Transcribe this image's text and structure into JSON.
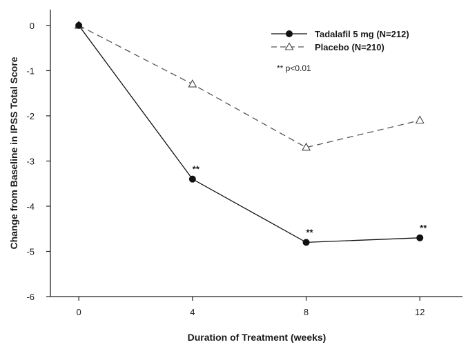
{
  "chart_data": {
    "type": "line",
    "x": [
      0,
      4,
      8,
      12
    ],
    "xticks": [
      "0",
      "4",
      "8",
      "12"
    ],
    "yticks": [
      "0",
      "-1",
      "-2",
      "-3",
      "-4",
      "-5",
      "-6"
    ],
    "xlabel": "Duration of Treatment (weeks)",
    "ylabel": "Change from Baseline in IPSS Total Score",
    "xlim": [
      -1,
      13.5
    ],
    "ylim": [
      -6,
      0.35
    ],
    "grid": false,
    "legend_position": "top-right",
    "annotation": "** p<0.01",
    "series": [
      {
        "name": "Tadalafil 5 mg (N=212)",
        "values": [
          0,
          -3.4,
          -4.8,
          -4.7
        ],
        "marker": "filled-circle",
        "line": "solid",
        "significance": [
          "",
          "**",
          "**",
          "**"
        ]
      },
      {
        "name": "Placebo (N=210)",
        "values": [
          0,
          -1.3,
          -2.7,
          -2.1
        ],
        "marker": "open-triangle",
        "line": "dashed"
      }
    ]
  }
}
